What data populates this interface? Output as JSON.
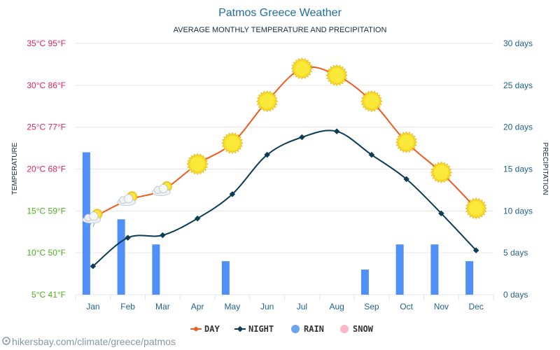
{
  "title": "Patmos Greece Weather",
  "subtitle": "AVERAGE MONTHLY TEMPERATURE AND PRECIPITATION",
  "source": "hikersbay.com/climate/greece/patmos",
  "colors": {
    "day": "#f05a1e",
    "night": "#0d3c55",
    "rain": "#4f8ff7",
    "snow": "#ffb6c8",
    "title": "#1f6ea8",
    "right_axis": "#1f5f8b",
    "grid": "#e6e6e6"
  },
  "legend": [
    {
      "label": "DAY",
      "color": "#f05a1e",
      "icon": "line-dot-icon"
    },
    {
      "label": "NIGHT",
      "color": "#0d3c55",
      "icon": "line-diamond-icon"
    },
    {
      "label": "RAIN",
      "color": "#6ea4ef",
      "icon": "circle-icon"
    },
    {
      "label": "SNOW",
      "color": "#ffb6c8",
      "icon": "circle-icon"
    }
  ],
  "chart_data": {
    "type": "line",
    "categories": [
      "Jan",
      "Feb",
      "Mar",
      "Apr",
      "May",
      "Jun",
      "Jul",
      "Aug",
      "Sep",
      "Oct",
      "Nov",
      "Dec"
    ],
    "series": [
      {
        "name": "DAY",
        "axis": "left",
        "unit": "°C",
        "values": [
          14.2,
          16.3,
          17.5,
          20.6,
          23.1,
          28.1,
          32.0,
          31.2,
          28.1,
          23.2,
          19.6,
          15.3
        ]
      },
      {
        "name": "NIGHT",
        "axis": "left",
        "unit": "°C",
        "values": [
          8.4,
          11.8,
          12.1,
          14.1,
          17.0,
          21.7,
          23.8,
          24.5,
          21.7,
          18.8,
          14.7,
          10.3
        ]
      },
      {
        "name": "RAIN",
        "axis": "right",
        "unit": "days",
        "type": "bar",
        "values": [
          17,
          9,
          6,
          0,
          4,
          0,
          0,
          0,
          3,
          6,
          6,
          4
        ]
      }
    ],
    "weather_icons": [
      "sun-cloud-rain-icon",
      "sun-cloud-icon",
      "sun-cloud-icon",
      "sun-icon",
      "sun-icon",
      "sun-icon",
      "sun-icon",
      "sun-icon",
      "sun-icon",
      "sun-icon",
      "sun-icon",
      "sun-icon"
    ],
    "left_axis": {
      "label": "TEMPERATURE",
      "range": [
        5,
        35
      ],
      "ticks": [
        {
          "value": 35,
          "label": "35°C 95°F",
          "color": "#e0245e"
        },
        {
          "value": 30,
          "label": "30°C 86°F",
          "color": "#e0245e"
        },
        {
          "value": 25,
          "label": "25°C 77°F",
          "color": "#e0245e"
        },
        {
          "value": 20,
          "label": "20°C 68°F",
          "color": "#e0245e"
        },
        {
          "value": 15,
          "label": "15°C 59°F",
          "color": "#4caf1a"
        },
        {
          "value": 10,
          "label": "10°C 50°F",
          "color": "#4caf1a"
        },
        {
          "value": 5,
          "label": "5°C 41°F",
          "color": "#4caf1a"
        }
      ]
    },
    "right_axis": {
      "label": "PRECIPITATION",
      "range": [
        0,
        30
      ],
      "ticks": [
        {
          "value": 30,
          "label": "30 days"
        },
        {
          "value": 25,
          "label": "25 days"
        },
        {
          "value": 20,
          "label": "20 days"
        },
        {
          "value": 15,
          "label": "15 days"
        },
        {
          "value": 10,
          "label": "10 days"
        },
        {
          "value": 5,
          "label": "5 days"
        },
        {
          "value": 0,
          "label": "0 days"
        }
      ]
    },
    "grid": true,
    "legend_position": "bottom-center"
  }
}
